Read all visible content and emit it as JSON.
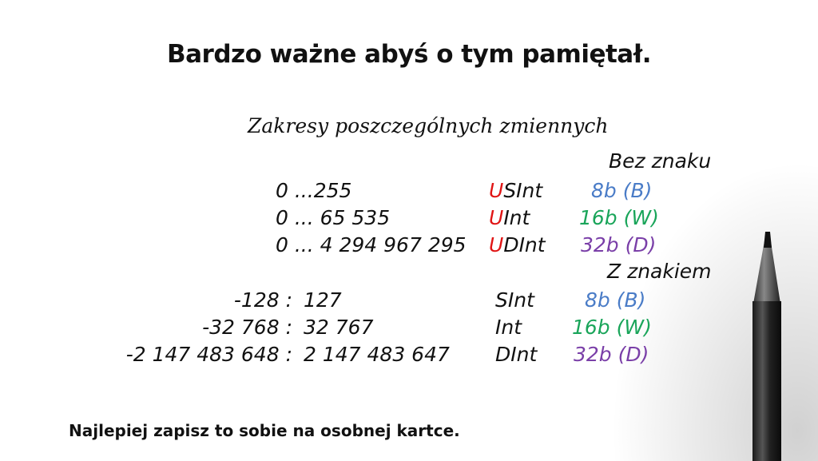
{
  "title": "Bardzo ważne abyś o tym pamiętał.",
  "subtitle": "Zakresy poszczególnych zmiennych",
  "unsigned": {
    "heading": "Bez znaku",
    "rows": [
      {
        "range": "0 ...255",
        "prefix": "U",
        "type": "SInt",
        "size": "8b (B)",
        "color": "#4a7cc7"
      },
      {
        "range": "0 ... 65 535",
        "prefix": "U",
        "type": "Int",
        "size": "16b (W)",
        "color": "#1aa55a"
      },
      {
        "range": "0 ... 4 294 967 295",
        "prefix": "U",
        "type": "DInt",
        "size": "32b (D)",
        "color": "#7a3fa8"
      }
    ]
  },
  "signed": {
    "heading": "Z znakiem",
    "rows": [
      {
        "min": "-128 :",
        "max": "127",
        "type": "SInt",
        "size": "8b (B)",
        "color": "#4a7cc7"
      },
      {
        "min": "-32 768 :",
        "max": "32 767",
        "type": "Int",
        "size": "16b (W)",
        "color": "#1aa55a"
      },
      {
        "min": "-2 147 483 648 :",
        "max": "2 147 483 647",
        "type": "DInt",
        "size": "32b (D)",
        "color": "#7a3fa8"
      }
    ]
  },
  "prefix_color": "#e01515",
  "footer": "Najlepiej zapisz to sobie na osobnej kartce."
}
